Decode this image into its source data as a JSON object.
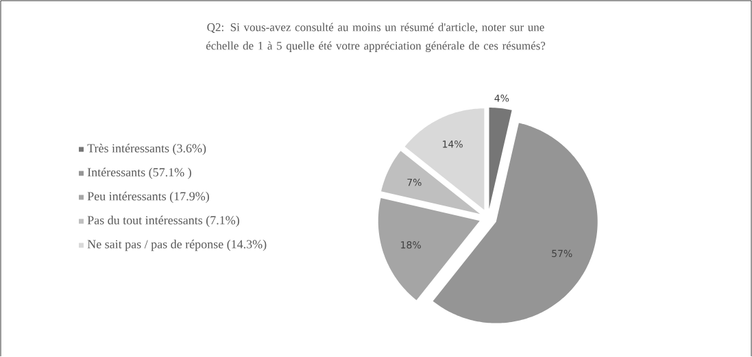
{
  "chart_data": {
    "type": "pie",
    "title": "Q2: Si vous-avez consulté au moins un résumé d'article, noter sur une échelle de 1 à 5 quelle été votre appréciation générale de ces résumés?",
    "categories": [
      "Très intéressants (3.6%)",
      "Intéressants (57.1% )",
      "Peu intéressants (17.9%)",
      "Pas du tout intéressants (7.1%)",
      "Ne sait pas / pas de réponse (14.3%)"
    ],
    "values": [
      3.6,
      57.1,
      17.9,
      7.1,
      14.3
    ],
    "colors": [
      "#767676",
      "#959595",
      "#a5a5a5",
      "#bfbfbf",
      "#d9d9d9"
    ],
    "value_labels": [
      "4%",
      "57%",
      "18%",
      "7%",
      "14%"
    ],
    "legend": "left"
  }
}
